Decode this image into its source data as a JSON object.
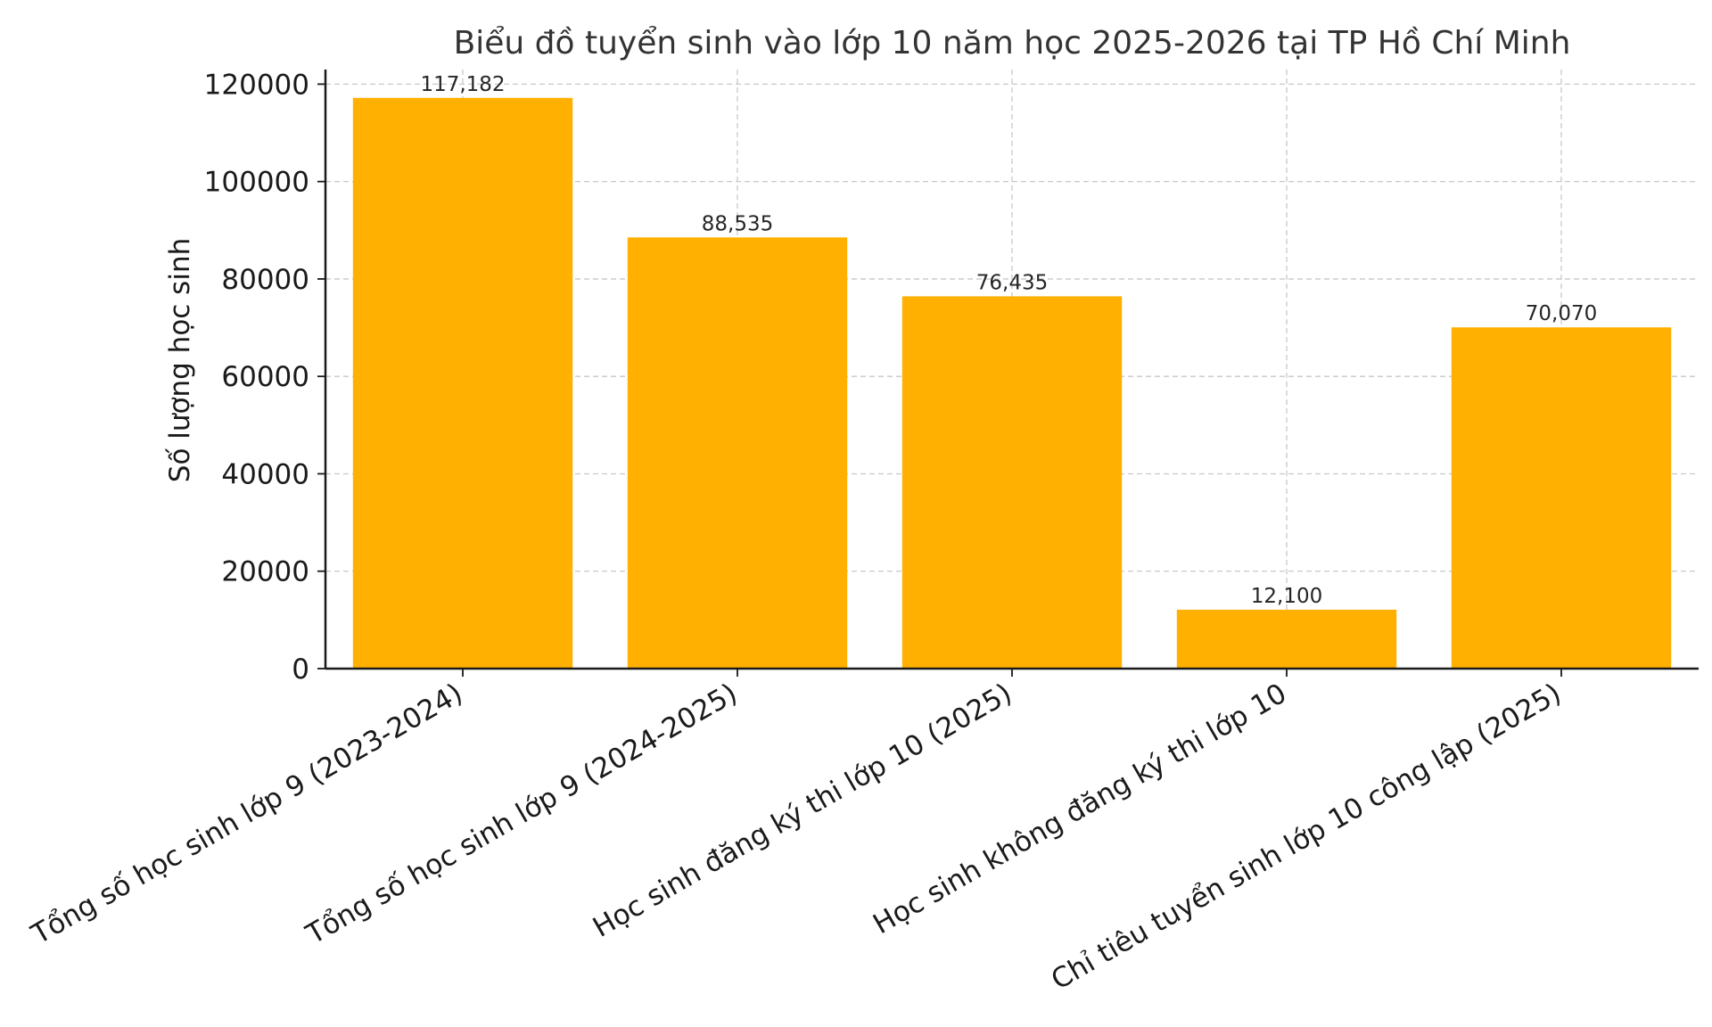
{
  "chart_data": {
    "type": "bar",
    "title": "Biểu đồ tuyển sinh vào lớp 10 năm học 2025-2026 tại TP Hồ Chí Minh",
    "xlabel": "",
    "ylabel": "Số lượng học sinh",
    "categories": [
      "Tổng số học sinh lớp 9 (2023-2024)",
      "Tổng số học sinh lớp 9 (2024-2025)",
      "Học sinh đăng ký thi lớp 10 (2025)",
      "Học sinh không đăng ký thi lớp 10",
      "Chỉ tiêu tuyển sinh lớp 10 công lập (2025)"
    ],
    "values": [
      117182,
      88535,
      76435,
      12100,
      70070
    ],
    "data_labels": [
      "117,182",
      "88,535",
      "76,435",
      "12,100",
      "70,070"
    ],
    "ylim": [
      0,
      123000
    ],
    "yticks": [
      0,
      20000,
      40000,
      60000,
      80000,
      100000,
      120000
    ],
    "ytick_labels": [
      "0",
      "20000",
      "40000",
      "60000",
      "80000",
      "100000",
      "120000"
    ],
    "bar_color": "#FFB000",
    "grid": true
  }
}
